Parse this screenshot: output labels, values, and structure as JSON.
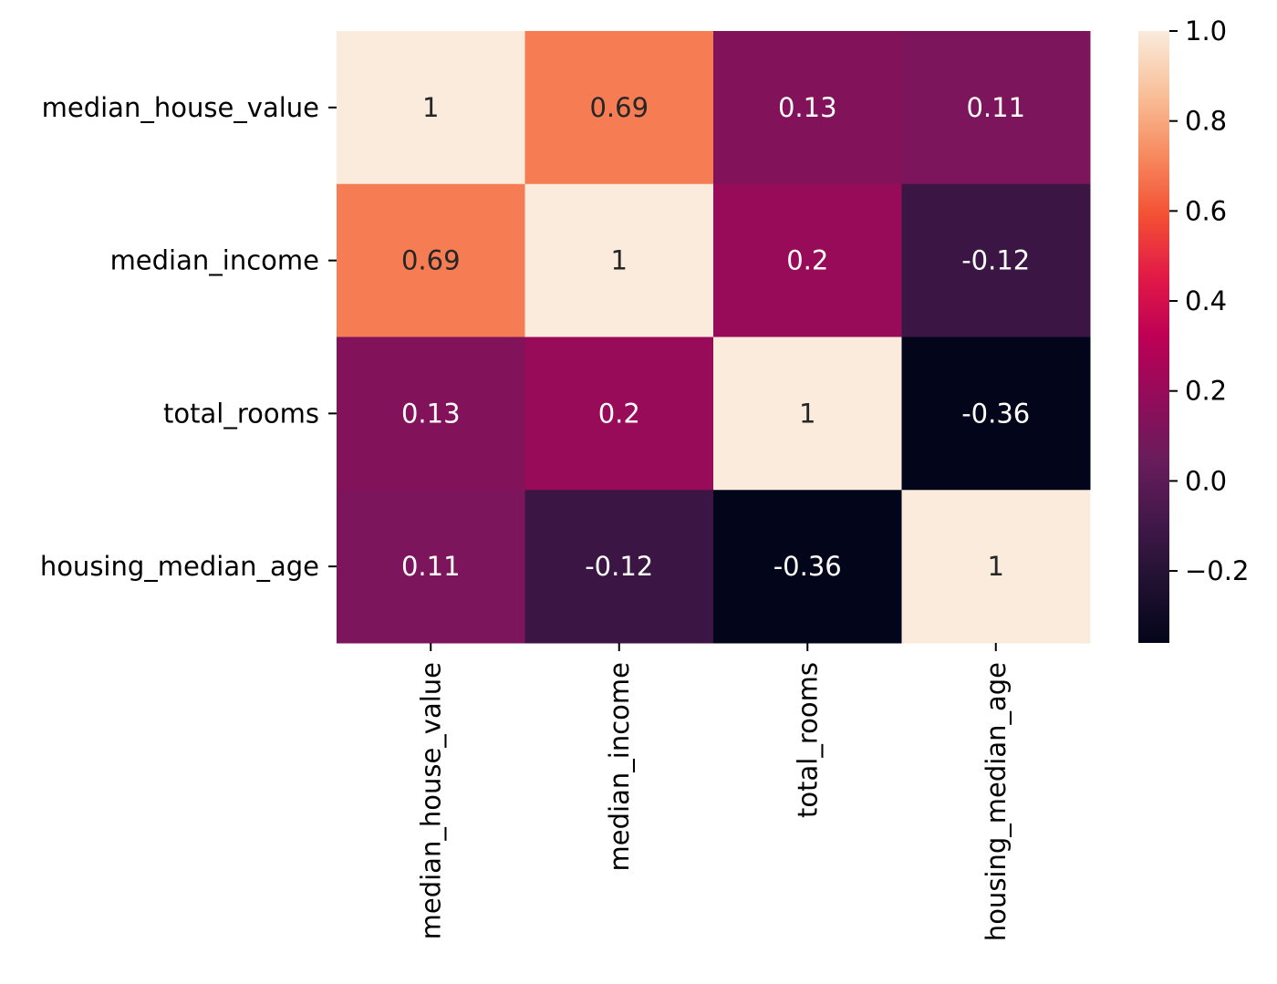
{
  "chart_data": {
    "type": "heatmap",
    "title": "",
    "xlabel": "",
    "ylabel": "",
    "row_labels": [
      "median_house_value",
      "median_income",
      "total_rooms",
      "housing_median_age"
    ],
    "col_labels": [
      "median_house_value",
      "median_income",
      "total_rooms",
      "housing_median_age"
    ],
    "values": [
      [
        1,
        0.69,
        0.13,
        0.11
      ],
      [
        0.69,
        1,
        0.2,
        -0.12
      ],
      [
        0.13,
        0.2,
        1,
        -0.36
      ],
      [
        0.11,
        -0.12,
        -0.36,
        1
      ]
    ],
    "annotations": [
      [
        "1",
        "0.69",
        "0.13",
        "0.11"
      ],
      [
        "0.69",
        "1",
        "0.2",
        "-0.12"
      ],
      [
        "0.13",
        "0.2",
        "1",
        "-0.36"
      ],
      [
        "0.11",
        "-0.12",
        "-0.36",
        "1"
      ]
    ],
    "colormap": "rocket",
    "vmin": -0.36,
    "vmax": 1.0,
    "colorbar": {
      "ticks": [
        1.0,
        0.8,
        0.6,
        0.4,
        0.2,
        0.0,
        -0.2
      ],
      "tick_labels": [
        "1.0",
        "0.8",
        "0.6",
        "0.4",
        "0.2",
        "0.0",
        "−0.2"
      ]
    },
    "grid": false,
    "legend": "colorbar-right"
  }
}
